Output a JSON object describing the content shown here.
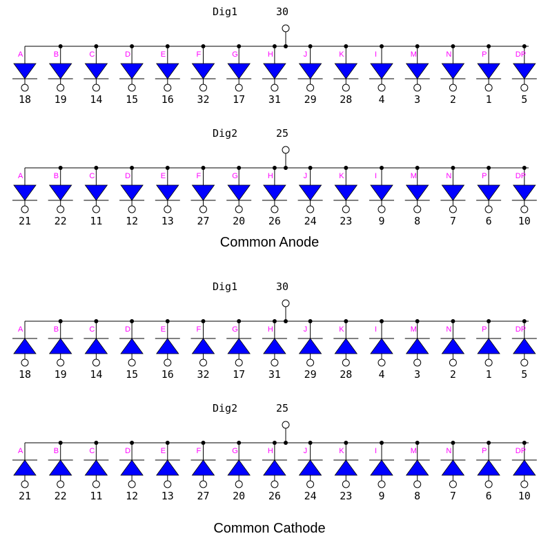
{
  "captions": {
    "anode": "Common Anode",
    "cathode": "Common Cathode"
  },
  "colors": {
    "diode_fill": "#0000ff",
    "segment_label": "#ff00ff",
    "wire": "#000000"
  },
  "segments": [
    "A",
    "B",
    "C",
    "D",
    "E",
    "F",
    "G",
    "H",
    "J",
    "K",
    "I",
    "M",
    "N",
    "P",
    "DP"
  ],
  "groups": [
    {
      "id": "anode-dig1",
      "type": "anode",
      "digit_name": "Dig1",
      "digit_pin": "30",
      "pins": [
        "18",
        "19",
        "14",
        "15",
        "16",
        "32",
        "17",
        "31",
        "29",
        "28",
        "4",
        "3",
        "2",
        "1",
        "5"
      ]
    },
    {
      "id": "anode-dig2",
      "type": "anode",
      "digit_name": "Dig2",
      "digit_pin": "25",
      "pins": [
        "21",
        "22",
        "11",
        "12",
        "13",
        "27",
        "20",
        "26",
        "24",
        "23",
        "9",
        "8",
        "7",
        "6",
        "10"
      ]
    },
    {
      "id": "cathode-dig1",
      "type": "cathode",
      "digit_name": "Dig1",
      "digit_pin": "30",
      "pins": [
        "18",
        "19",
        "14",
        "15",
        "16",
        "32",
        "17",
        "31",
        "29",
        "28",
        "4",
        "3",
        "2",
        "1",
        "5"
      ]
    },
    {
      "id": "cathode-dig2",
      "type": "cathode",
      "digit_name": "Dig2",
      "digit_pin": "25",
      "pins": [
        "21",
        "22",
        "11",
        "12",
        "13",
        "27",
        "20",
        "26",
        "24",
        "23",
        "9",
        "8",
        "7",
        "6",
        "10"
      ]
    }
  ]
}
